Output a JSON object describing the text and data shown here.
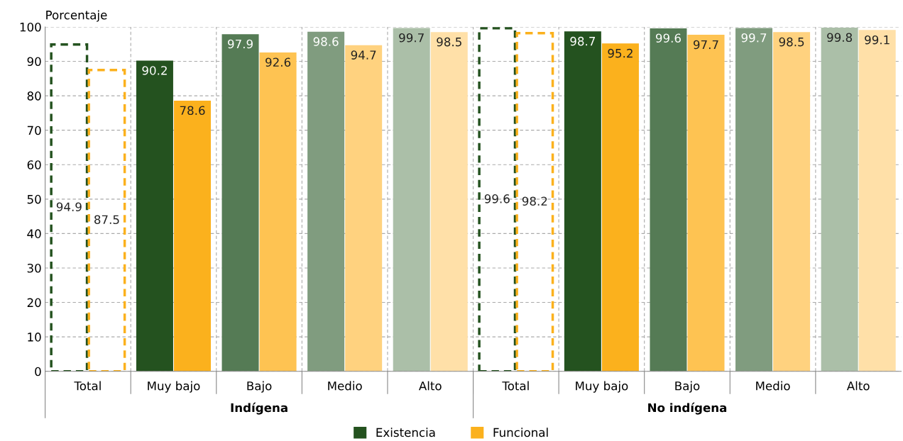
{
  "chart_data": {
    "type": "bar",
    "ylabel": "Porcentaje",
    "categories": [
      "Total",
      "Muy bajo",
      "Bajo",
      "Medio",
      "Alto",
      "Total",
      "Muy bajo",
      "Bajo",
      "Medio",
      "Alto"
    ],
    "series": [
      {
        "line_style": "dashed",
        "colors": [
          "#24521f",
          null,
          null,
          null,
          null,
          "#24521f",
          null,
          null,
          null,
          null
        ],
        "values": [
          94.9,
          null,
          null,
          null,
          null,
          99.6,
          null,
          null,
          null,
          null
        ]
      },
      {
        "line_style": "dashed",
        "colors": [
          "#fbb11d",
          null,
          null,
          null,
          null,
          "#fbb11d",
          null,
          null,
          null,
          null
        ],
        "values": [
          87.5,
          null,
          null,
          null,
          null,
          98.2,
          null,
          null,
          null,
          null
        ]
      },
      {
        "name": "Existencia",
        "color": "#24521f",
        "colors": [
          null,
          "#24521f",
          "#557b55",
          "#809c7f",
          "#abbfa8",
          null,
          "#24521f",
          "#557b55",
          "#809c7f",
          "#abbfa8"
        ],
        "values": [
          null,
          90.2,
          97.9,
          98.6,
          99.7,
          null,
          98.7,
          99.6,
          99.7,
          99.8
        ]
      },
      {
        "name": "Funcional",
        "color": "#fbb11d",
        "colors": [
          null,
          "#fbb11d",
          "#fec352",
          "#ffd27f",
          "#ffe0a8",
          null,
          "#fbb11d",
          "#fec352",
          "#ffd27f",
          "#ffe0a8"
        ],
        "values": [
          null,
          78.6,
          92.6,
          94.7,
          98.5,
          null,
          95.2,
          97.7,
          98.5,
          99.1
        ]
      }
    ],
    "annotations": [
      "Indígena",
      "No indígena"
    ],
    "ylim": [
      0,
      100
    ],
    "yticks": [
      0,
      10,
      20,
      30,
      40,
      50,
      60,
      70,
      80,
      90,
      100
    ],
    "grid": true,
    "legend": "bottom",
    "data_labels": true
  }
}
